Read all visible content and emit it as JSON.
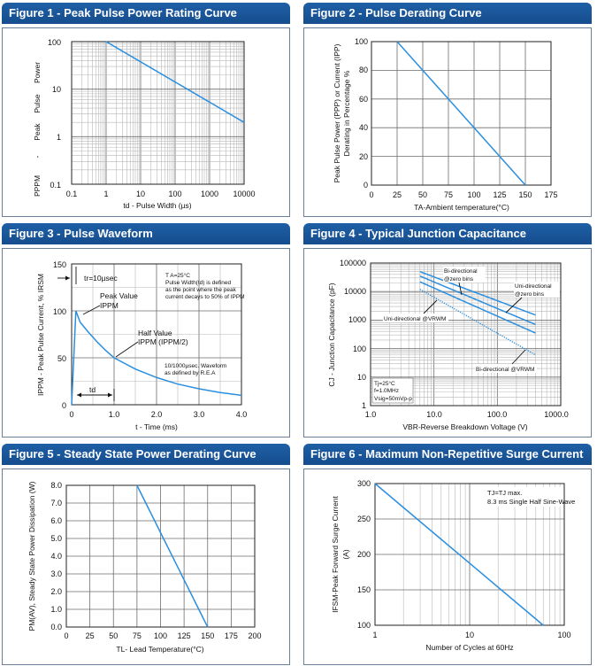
{
  "chart_data": [
    {
      "id": "fig1",
      "type": "line",
      "xscale": "log",
      "yscale": "log",
      "title": "Figure 1 - Peak Pulse Power Rating Curve",
      "xlabel": "td - Pulse Width (µs)",
      "ylabel_parts": [
        "PPPM",
        "-",
        "Peak",
        "Pulse",
        "Power"
      ],
      "xlim": [
        0.1,
        10000
      ],
      "ylim": [
        0.1,
        100
      ],
      "xticks": [
        "0.1",
        "1",
        "10",
        "100",
        "1000",
        "10000"
      ],
      "yticks": [
        "0.1",
        "1",
        "10",
        "100"
      ],
      "series": [
        {
          "name": "PPPM",
          "x": [
            1,
            10000
          ],
          "y": [
            100,
            2
          ]
        }
      ]
    },
    {
      "id": "fig2",
      "type": "line",
      "title": "Figure 2 - Pulse Derating Curve",
      "xlabel": "TA-Ambient temperature(°C)",
      "ylabel_lines": [
        "Peak Pulse Power (PPP) or Current (IPP)",
        "Derating in Percentage %"
      ],
      "xlim": [
        0,
        175
      ],
      "ylim": [
        0,
        100
      ],
      "xticks": [
        "0",
        "25",
        "50",
        "75",
        "100",
        "125",
        "150",
        "175"
      ],
      "yticks": [
        "0",
        "20",
        "40",
        "60",
        "80",
        "100"
      ],
      "series": [
        {
          "name": "derating",
          "x": [
            25,
            150
          ],
          "y": [
            100,
            0
          ]
        }
      ]
    },
    {
      "id": "fig3",
      "type": "line",
      "title": "Figure 3 - Pulse Waveform",
      "xlabel": "t - Time (ms)",
      "ylabel": "IPPM - Peak Pulse Current, % IRSM",
      "xlim": [
        0,
        4.0
      ],
      "ylim": [
        0,
        150
      ],
      "xticks": [
        "0",
        "1.0",
        "2.0",
        "3.0",
        "4.0"
      ],
      "yticks": [
        "0",
        "50",
        "100",
        "150"
      ],
      "series": [
        {
          "name": "10/1000µsec waveform",
          "x": [
            0,
            0.1,
            0.2,
            0.4,
            0.6,
            0.8,
            1.0,
            1.5,
            2.0,
            2.5,
            3.0,
            3.5,
            4.0
          ],
          "y": [
            0,
            100,
            88,
            77,
            67,
            58,
            50,
            38,
            29,
            22,
            17,
            13,
            10
          ]
        }
      ],
      "annotations": {
        "tr": "tr=10µsec",
        "conditions": [
          "T A=25°C",
          "Pulse Width(td) is defined",
          "as the point where the peak",
          "current decays to 50% of IPPM"
        ],
        "peak": [
          "Peak Value",
          "IPPM"
        ],
        "half": [
          "Half Value",
          "IPPM (IPPM/2)"
        ],
        "waveform": [
          "10/1000µsec. Waveform",
          "as defined by R.E.A"
        ],
        "td": "td"
      }
    },
    {
      "id": "fig4",
      "type": "line",
      "xscale": "log",
      "yscale": "log",
      "title": "Figure 4 - Typical Junction Capacitance",
      "xlabel": "VBR-Reverse Breakdown Voltage (V)",
      "ylabel": "CJ - Junction Capacitance (pF)",
      "xlim": [
        1.0,
        1000.0
      ],
      "ylim": [
        1,
        100000
      ],
      "xticks": [
        "1.0",
        "10.0",
        "100.0",
        "1000.0"
      ],
      "yticks": [
        "1",
        "10",
        "100",
        "1000",
        "10000",
        "100000"
      ],
      "series": [
        {
          "name": "Bi-directional @zero bins",
          "style": "solid",
          "x": [
            6,
            400
          ],
          "y": [
            50000,
            1500
          ]
        },
        {
          "name": "Uni-directional @zero bins",
          "style": "solid",
          "x": [
            6,
            400
          ],
          "y": [
            35000,
            700
          ]
        },
        {
          "name": "Uni-directional @VRWM",
          "style": "solid",
          "x": [
            6,
            400
          ],
          "y": [
            22000,
            350
          ]
        },
        {
          "name": "Bi-directional @VRWM",
          "style": "dotted",
          "x": [
            6,
            400
          ],
          "y": [
            12000,
            60
          ]
        }
      ],
      "labels": {
        "bi_zero": [
          "Bi-directional",
          "@zero bins"
        ],
        "uni_zero": [
          "Uni-directional",
          "@zero bins"
        ],
        "uni_vrwm": "Uni-directional @VRWM",
        "bi_vrwm": "Bi-directional @VRWM",
        "conditions": [
          "Tj=25°C",
          "f=1.0MHz",
          "Vsig=50mVp-p"
        ]
      }
    },
    {
      "id": "fig5",
      "type": "line",
      "title": "Figure 5 - Steady State Power Derating Curve",
      "xlabel": "TL- Lead Temperature(°C)",
      "ylabel": "PM(AV), Steady State Power Dissipation (W)",
      "xlim": [
        0,
        200
      ],
      "ylim": [
        0,
        8.0
      ],
      "xticks": [
        "0",
        "25",
        "50",
        "75",
        "100",
        "125",
        "150",
        "175",
        "200"
      ],
      "yticks": [
        "0.0",
        "1.0",
        "2.0",
        "3.0",
        "4.0",
        "5.0",
        "6.0",
        "7.0",
        "8.0"
      ],
      "series": [
        {
          "name": "PM(AV)",
          "x": [
            75,
            150
          ],
          "y": [
            8.0,
            0.0
          ]
        }
      ]
    },
    {
      "id": "fig6",
      "type": "line",
      "xscale": "log",
      "title": "Figure 6 - Maximum Non-Repetitive Surge Current",
      "xlabel": "Number of Cycles at 60Hz",
      "ylabel_lines": [
        "IFSM-Peak Forward Surge Current",
        "(A)"
      ],
      "xlim": [
        1,
        100
      ],
      "ylim": [
        100,
        300
      ],
      "xticks": [
        "1",
        "10",
        "100"
      ],
      "yticks": [
        "100",
        "150",
        "200",
        "250",
        "300"
      ],
      "series": [
        {
          "name": "IFSM",
          "x": [
            1,
            60
          ],
          "y": [
            300,
            100
          ]
        }
      ],
      "annotations": [
        "TJ=TJ max.",
        "8.3 ms Single Half Sine-Wave"
      ]
    }
  ],
  "colors": {
    "header": "#1c5aa0",
    "curve": "#2a8fe0",
    "frame": "#222222"
  }
}
